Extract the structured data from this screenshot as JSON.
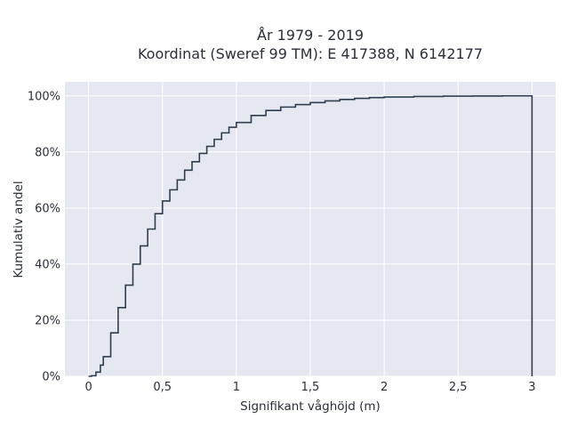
{
  "chart_data": {
    "type": "line",
    "title": "År 1979 - 2019",
    "subtitle": "Koordinat (Sweref 99 TM): E 417388, N 6142177",
    "xlabel": "Signifikant våghöjd (m)",
    "ylabel": "Kumulativ andel",
    "xlim": [
      -0.16,
      3.16
    ],
    "ylim": [
      0,
      1.05
    ],
    "x_ticks": [
      0,
      0.5,
      1,
      1.5,
      2,
      2.5,
      3
    ],
    "x_tick_labels": [
      "0",
      "0,5",
      "1",
      "1,5",
      "2",
      "2,5",
      "3"
    ],
    "y_ticks": [
      0,
      0.2,
      0.4,
      0.6,
      0.8,
      1.0
    ],
    "y_tick_labels": [
      "0%",
      "20%",
      "40%",
      "60%",
      "80%",
      "100%"
    ],
    "grid": true,
    "series": [
      {
        "line_style": "step",
        "x": [
          0.0,
          0.02,
          0.05,
          0.08,
          0.1,
          0.15,
          0.2,
          0.25,
          0.3,
          0.35,
          0.4,
          0.45,
          0.5,
          0.55,
          0.6,
          0.65,
          0.7,
          0.75,
          0.8,
          0.85,
          0.9,
          0.95,
          1.0,
          1.1,
          1.2,
          1.3,
          1.4,
          1.5,
          1.6,
          1.7,
          1.8,
          1.9,
          2.0,
          2.2,
          2.4,
          2.6,
          2.8,
          3.0,
          3.0
        ],
        "y": [
          0.0,
          0.002,
          0.015,
          0.04,
          0.07,
          0.155,
          0.245,
          0.325,
          0.4,
          0.465,
          0.525,
          0.58,
          0.625,
          0.665,
          0.7,
          0.735,
          0.765,
          0.795,
          0.82,
          0.845,
          0.868,
          0.888,
          0.905,
          0.93,
          0.948,
          0.96,
          0.969,
          0.976,
          0.982,
          0.987,
          0.991,
          0.994,
          0.996,
          0.998,
          0.999,
          0.9995,
          1.0,
          1.0,
          0.0
        ]
      }
    ]
  },
  "colors": {
    "plot_bg": "#e5e8f0",
    "grid": "#ffffff",
    "line": "#2f3e4e",
    "text": "#2a2f3a"
  }
}
